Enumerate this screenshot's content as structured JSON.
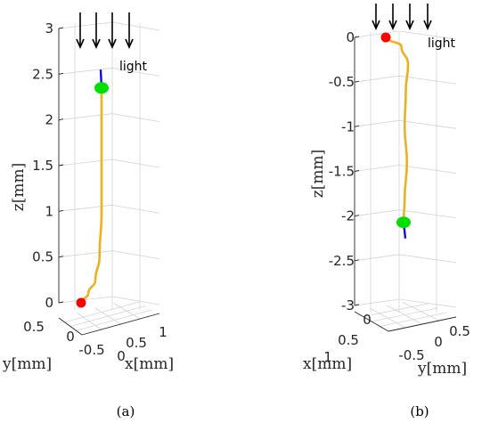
{
  "chart_data": [
    {
      "id": "a",
      "type": "line3d",
      "caption": "(a)",
      "zlabel": "z[mm]",
      "xlabel": "x[mm]",
      "ylabel": "y[mm]",
      "zticks": [
        "0",
        "0.5",
        "1",
        "1.5",
        "2",
        "2.5",
        "3"
      ],
      "xticks": [
        "0",
        "0.5",
        "1"
      ],
      "yticks": [
        "0.5",
        "0",
        "-0.5"
      ],
      "zlim": [
        0,
        3
      ],
      "light_label": "light",
      "curve_color": "#edb120",
      "start_marker_color": "#ff0000",
      "end_marker_color": "#00e000",
      "tip_color": "#1010d0",
      "curve": [
        {
          "z": 0.0,
          "offset": 0.0
        },
        {
          "z": 0.1,
          "offset": 0.35
        },
        {
          "z": 0.25,
          "offset": 0.7
        },
        {
          "z": 0.5,
          "offset": 0.9
        },
        {
          "z": 1.0,
          "offset": 1.0
        },
        {
          "z": 1.5,
          "offset": 1.0
        },
        {
          "z": 2.0,
          "offset": 1.0
        },
        {
          "z": 2.35,
          "offset": 1.0
        }
      ],
      "start_z": 0.0,
      "end_z": 2.35,
      "tip_z": 2.55
    },
    {
      "id": "b",
      "type": "line3d",
      "caption": "(b)",
      "zlabel": "z[mm]",
      "xlabel": "x[mm]",
      "ylabel": "y[mm]",
      "zticks": [
        "-3",
        "-2.5",
        "-2",
        "-1.5",
        "-1",
        "-0.5",
        "0"
      ],
      "xticks": [
        "1",
        "0.5",
        "0"
      ],
      "yticks": [
        "-0.5",
        "0",
        "0.5"
      ],
      "zlim": [
        -3,
        0
      ],
      "light_label": "light",
      "curve_color": "#edb120",
      "start_marker_color": "#ff0000",
      "end_marker_color": "#00e000",
      "tip_color": "#1010d0",
      "curve": [
        {
          "z": 0.0,
          "offset": 0.0
        },
        {
          "z": -0.1,
          "offset": 0.7
        },
        {
          "z": -0.3,
          "offset": 1.0
        },
        {
          "z": -0.6,
          "offset": 0.9
        },
        {
          "z": -1.0,
          "offset": 0.85
        },
        {
          "z": -1.4,
          "offset": 0.95
        },
        {
          "z": -1.8,
          "offset": 0.85
        },
        {
          "z": -2.07,
          "offset": 0.8
        }
      ],
      "start_z": 0.0,
      "end_z": -2.07,
      "tip_z": -2.25
    }
  ]
}
